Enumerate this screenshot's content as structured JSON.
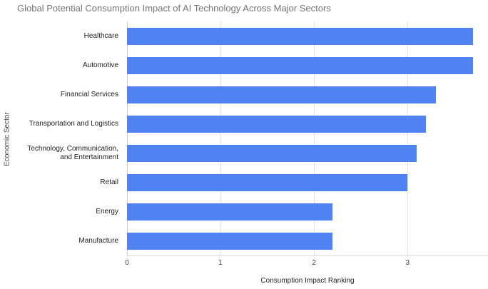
{
  "chart_data": {
    "type": "bar",
    "orientation": "horizontal",
    "title": "Global Potential Consumption Impact of AI Technology Across Major Sectors",
    "xlabel": "Consumption Impact Ranking",
    "ylabel": "Economic Sector",
    "categories": [
      "Healthcare",
      "Automotive",
      "Financial Services",
      "Transportation and Logistics",
      "Technology, Communication, and Entertainment",
      "Retail",
      "Energy",
      "Manufacture"
    ],
    "values": [
      3.7,
      3.7,
      3.3,
      3.2,
      3.1,
      3.0,
      2.2,
      2.2
    ],
    "xticks": [
      0,
      1,
      2,
      3
    ],
    "xmax": 3.86,
    "bar_color": "#4e83f1",
    "grid": true,
    "legend": "none",
    "background": "#ffffff"
  }
}
